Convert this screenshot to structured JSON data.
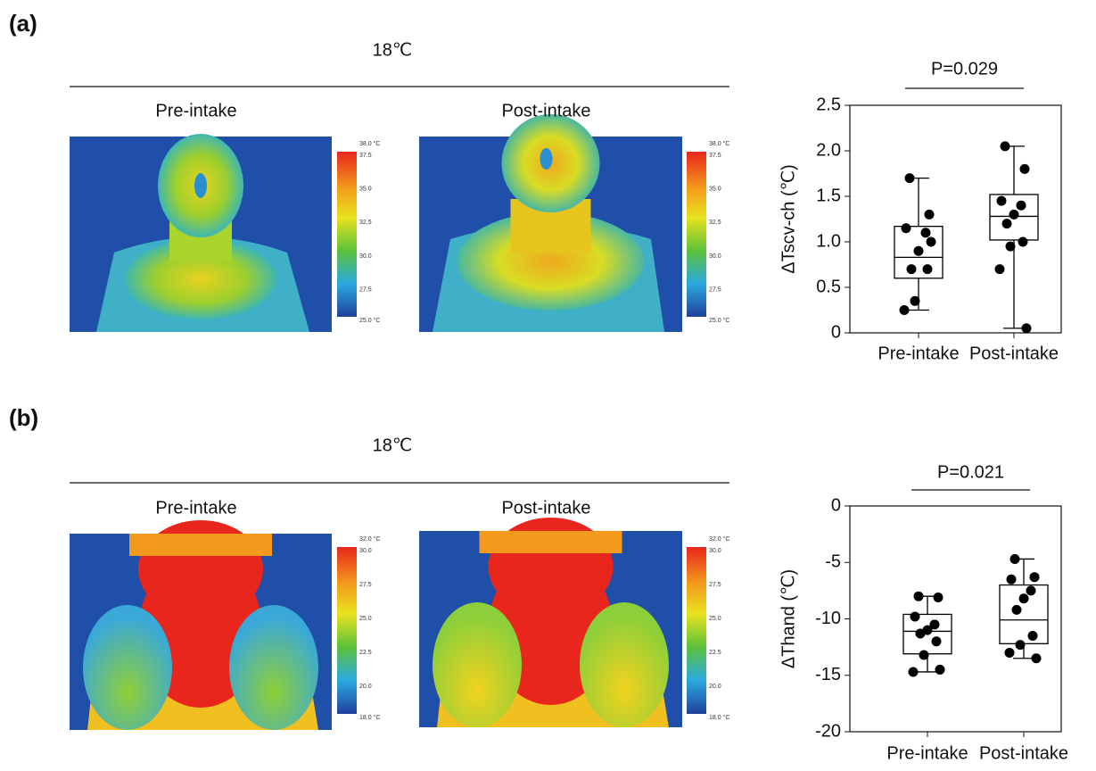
{
  "panels": [
    {
      "label": "(a)",
      "temperature": "18℃",
      "images": [
        {
          "caption": "Pre-intake",
          "colorbar": [
            "38.0 °C",
            "37.5",
            "35.0",
            "32.5",
            "30.0",
            "27.5",
            "25.0 °C"
          ]
        },
        {
          "caption": "Post-intake",
          "colorbar": [
            "38.0 °C",
            "37.5",
            "35.0",
            "32.5",
            "30.0",
            "27.5",
            "25.0 °C"
          ]
        }
      ]
    },
    {
      "label": "(b)",
      "temperature": "18℃",
      "images": [
        {
          "caption": "Pre-intake",
          "colorbar": [
            "32.0 °C",
            "30.0",
            "27.5",
            "25.0",
            "22.5",
            "20.0",
            "18.0 °C"
          ]
        },
        {
          "caption": "Post-intake",
          "colorbar": [
            "32.0 °C",
            "30.0",
            "27.5",
            "25.0",
            "22.5",
            "20.0",
            "18.0 °C"
          ]
        }
      ]
    }
  ],
  "chart_data": [
    {
      "type": "box",
      "annotation": "P=0.029",
      "y_label": "ΔTscv-ch (℃)",
      "color": "#000000",
      "categories": [
        "Pre-intake",
        "Post-intake"
      ],
      "ylim": [
        0,
        2.5
      ],
      "yticks": [
        0,
        0.5,
        {
          "value": 1,
          "label": "1.0"
        },
        1.5,
        {
          "value": 2,
          "label": "2.0"
        },
        2.5
      ],
      "boxes": [
        {
          "min": 0.25,
          "q1": 0.6,
          "median": 0.83,
          "q3": 1.17,
          "max": 1.7,
          "points": [
            1.7,
            1.3,
            1.15,
            1.1,
            0.9,
            0.7,
            0.7,
            0.35,
            0.25,
            1.0
          ]
        },
        {
          "min": 0.05,
          "q1": 1.02,
          "median": 1.28,
          "q3": 1.52,
          "max": 2.05,
          "points": [
            2.05,
            1.8,
            1.45,
            1.4,
            1.3,
            1.2,
            1.0,
            0.95,
            0.7,
            0.05
          ]
        }
      ]
    },
    {
      "type": "box",
      "annotation": "P=0.021",
      "y_label": "ΔThand (℃)",
      "color": "#000000",
      "categories": [
        "Pre-intake",
        "Post-intake"
      ],
      "ylim": [
        -20,
        0
      ],
      "yticks": [
        -20,
        -15,
        -10,
        -5,
        0
      ],
      "boxes": [
        {
          "min": -14.7,
          "q1": -13.1,
          "median": -11.1,
          "q3": -9.6,
          "max": -8,
          "points": [
            -8,
            -8.1,
            -9.8,
            -10.5,
            -11,
            -11.3,
            -12,
            -13.2,
            -14.7,
            -14.5
          ]
        },
        {
          "min": -13.5,
          "q1": -12.2,
          "median": -10.1,
          "q3": -7,
          "max": -4.7,
          "points": [
            -4.7,
            -6.3,
            -6.5,
            -7.5,
            -8.2,
            -9.2,
            -11.5,
            -12.3,
            -13,
            -13.5
          ]
        }
      ]
    }
  ]
}
